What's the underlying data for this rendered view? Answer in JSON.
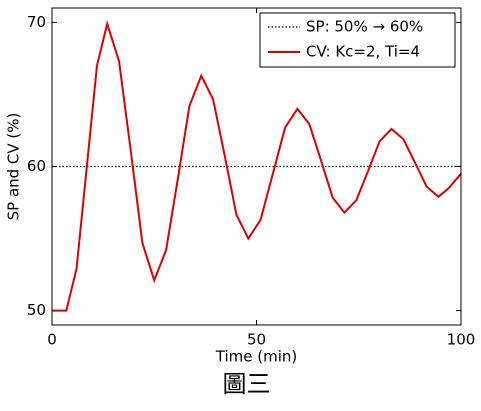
{
  "chart_data": {
    "type": "line",
    "xlabel": "Time (min)",
    "ylabel": "SP and CV (%)",
    "caption": "圖三",
    "xlim": [
      0,
      100
    ],
    "xticks": [
      0,
      50,
      100
    ],
    "ylim": [
      49,
      71
    ],
    "yticks": [
      50,
      60,
      70
    ],
    "legend": "upper right",
    "series": [
      {
        "name": "SP: 50% → 60%",
        "color": "#000000",
        "style": "dotted",
        "x": [
          0,
          100
        ],
        "values": [
          60,
          60
        ]
      },
      {
        "name": "CV: Kc=2, Ti=4",
        "color": "#dd0000",
        "style": "solid",
        "x": [
          0,
          3.5,
          6,
          8.5,
          11,
          13.5,
          16.4,
          19.3,
          22.1,
          25,
          27.9,
          30.8,
          33.6,
          36.5,
          39.4,
          42.3,
          45.1,
          48,
          51,
          54,
          57,
          60,
          62.9,
          65.8,
          68.6,
          71.5,
          74.4,
          77.3,
          80.1,
          83,
          85.9,
          88.8,
          91.6,
          94.5,
          97,
          100
        ],
        "values": [
          50,
          50,
          52.9,
          59.95,
          67,
          69.9,
          67.3,
          61,
          54.7,
          52.1,
          54.2,
          59.2,
          64.2,
          66.3,
          64.65,
          60.65,
          56.65,
          55,
          56.3,
          59.5,
          62.7,
          64,
          62.95,
          60.4,
          57.85,
          56.8,
          57.65,
          59.7,
          61.75,
          62.6,
          61.9,
          60.25,
          58.6,
          57.9,
          58.5,
          59.5
        ]
      }
    ]
  }
}
